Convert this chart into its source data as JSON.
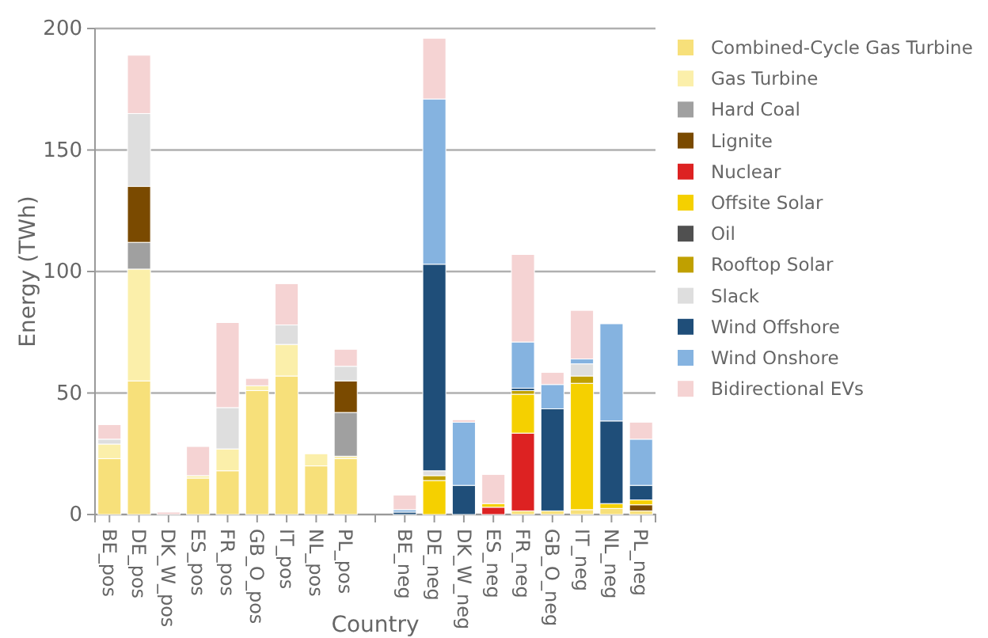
{
  "chart_data": {
    "type": "bar",
    "stacked": true,
    "xlabel": "Country",
    "ylabel": "Energy (TWh)",
    "categories": [
      "BE_pos",
      "DE_pos",
      "DK_W_pos",
      "ES_pos",
      "FR_pos",
      "GB_O_pos",
      "IT_pos",
      "NL_pos",
      "PL_pos",
      null,
      "BE_neg",
      "DE_neg",
      "DK_W_neg",
      "ES_neg",
      "FR_neg",
      "GB_O_neg",
      "IT_neg",
      "NL_neg",
      "PL_neg"
    ],
    "ylim": [
      0,
      200
    ],
    "yticks": [
      0,
      50,
      100,
      150,
      200
    ],
    "grid": "y",
    "legend": "right",
    "series": [
      {
        "name": "Combined-Cycle Gas Turbine",
        "color": "#f7e07a",
        "values": [
          23,
          55,
          0,
          15,
          18,
          51,
          57,
          20,
          23,
          0,
          0,
          0,
          0,
          0,
          1.5,
          1.5,
          2,
          2.5,
          1.5
        ]
      },
      {
        "name": "Gas Turbine",
        "color": "#fbefaa",
        "values": [
          6,
          46,
          0,
          1,
          9,
          2,
          13,
          5,
          1,
          0,
          0,
          0,
          0,
          0,
          0,
          0,
          0,
          0,
          0
        ]
      },
      {
        "name": "Hard Coal",
        "color": "#a0a0a0",
        "values": [
          0,
          11,
          0,
          0,
          0,
          0,
          0,
          0,
          18,
          0,
          0,
          0,
          0,
          0,
          0,
          0,
          0,
          0,
          0
        ]
      },
      {
        "name": "Lignite",
        "color": "#7a4a00",
        "values": [
          0,
          23,
          0,
          0,
          0,
          0,
          0,
          0,
          13,
          0,
          0,
          0,
          0,
          0,
          0,
          0,
          0,
          0,
          2.5
        ]
      },
      {
        "name": "Nuclear",
        "color": "#dd2222",
        "values": [
          0,
          0,
          0,
          0,
          0,
          0,
          0,
          0,
          0,
          0,
          0,
          0,
          0,
          3,
          32,
          0,
          0,
          0,
          0
        ]
      },
      {
        "name": "Offsite Solar",
        "color": "#f5d000",
        "values": [
          0,
          0,
          0,
          0,
          0,
          0,
          0,
          0,
          0,
          0,
          0,
          14,
          0,
          1.5,
          16,
          0,
          52,
          2,
          2
        ]
      },
      {
        "name": "Oil",
        "color": "#505050",
        "values": [
          0,
          0,
          0,
          0,
          0,
          0,
          0,
          0,
          0,
          0,
          0,
          0,
          0,
          0,
          0,
          0,
          0,
          0,
          0
        ]
      },
      {
        "name": "Rooftop Solar",
        "color": "#c0a000",
        "values": [
          0,
          0,
          0,
          0,
          0,
          0,
          0,
          0,
          0,
          0,
          0,
          2,
          0,
          0,
          1.5,
          0,
          3,
          0,
          0
        ]
      },
      {
        "name": "Slack",
        "color": "#dedede",
        "values": [
          2,
          30,
          0,
          0,
          17,
          0,
          8,
          0,
          6,
          0,
          0,
          2,
          0,
          0,
          0,
          0,
          5,
          0,
          0
        ]
      },
      {
        "name": "Wind Offshore",
        "color": "#1f4e79",
        "values": [
          0,
          0,
          0,
          0,
          0,
          0,
          0,
          0,
          0,
          0,
          1,
          85,
          12,
          0,
          1,
          42,
          0,
          34,
          6
        ]
      },
      {
        "name": "Wind Onshore",
        "color": "#85b3e0",
        "values": [
          0,
          0,
          0,
          0,
          0,
          0,
          0,
          0,
          0,
          0,
          1,
          68,
          26,
          0,
          19,
          10,
          2,
          40,
          19
        ]
      },
      {
        "name": "Bidirectional EVs",
        "color": "#f5d3d3",
        "values": [
          6,
          24,
          1,
          12,
          35,
          3,
          17,
          0,
          7,
          0,
          6,
          25,
          1,
          12,
          36,
          5,
          20,
          0,
          7
        ]
      }
    ]
  }
}
